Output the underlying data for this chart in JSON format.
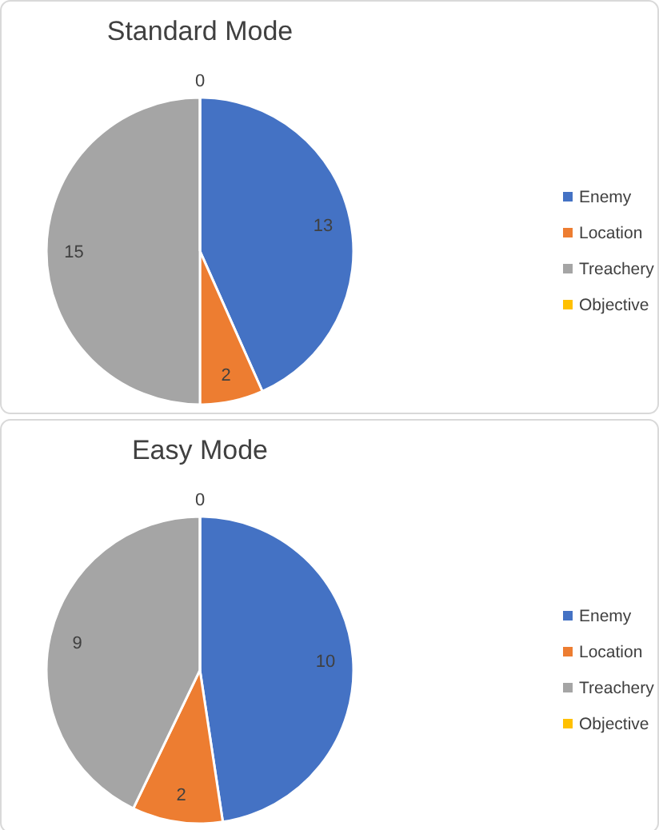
{
  "chart_data": [
    {
      "type": "pie",
      "title": "Standard Mode",
      "categories": [
        "Enemy",
        "Location",
        "Treachery",
        "Objective"
      ],
      "values": [
        13,
        2,
        15,
        0
      ],
      "colors": [
        "#4472c4",
        "#ed7d31",
        "#a5a5a5",
        "#ffc000"
      ],
      "value_labels": [
        "13",
        "2",
        "15",
        "0"
      ],
      "legend": "right"
    },
    {
      "type": "pie",
      "title": "Easy Mode",
      "categories": [
        "Enemy",
        "Location",
        "Treachery",
        "Objective"
      ],
      "values": [
        10,
        2,
        9,
        0
      ],
      "colors": [
        "#4472c4",
        "#ed7d31",
        "#a5a5a5",
        "#ffc000"
      ],
      "value_labels": [
        "10",
        "2",
        "9",
        "0"
      ],
      "legend": "right"
    }
  ]
}
